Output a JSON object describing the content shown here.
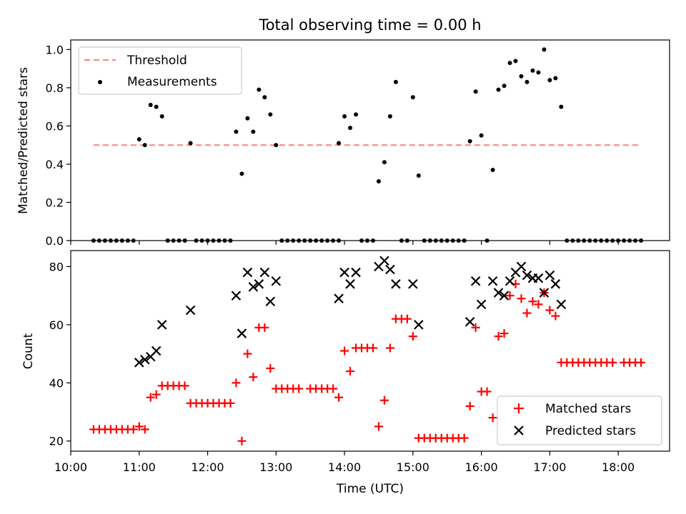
{
  "chart_data": [
    {
      "type": "scatter",
      "title": "Total observing time = 0.00 h",
      "xlabel": "",
      "ylabel": "Matched/Predicted stars",
      "xlim": [
        "10:00",
        "18:45"
      ],
      "ylim": [
        0,
        1.05
      ],
      "y_ticks": [
        "0.0",
        "0.2",
        "0.4",
        "0.6",
        "0.8",
        "1.0"
      ],
      "legend_position": "upper-left",
      "threshold": {
        "name": "Threshold",
        "value": 0.5,
        "x_range": [
          "10:20",
          "18:20"
        ],
        "color": "#ff7f7f",
        "style": "dashed"
      },
      "series": [
        {
          "name": "Measurements",
          "color": "#000000",
          "points": [
            [
              "10:20",
              0
            ],
            [
              "10:25",
              0
            ],
            [
              "10:30",
              0
            ],
            [
              "10:35",
              0
            ],
            [
              "10:40",
              0
            ],
            [
              "10:45",
              0
            ],
            [
              "10:50",
              0
            ],
            [
              "10:55",
              0
            ],
            [
              "11:00",
              0.53
            ],
            [
              "11:05",
              0.5
            ],
            [
              "11:10",
              0.71
            ],
            [
              "11:15",
              0.7
            ],
            [
              "11:20",
              0.65
            ],
            [
              "11:25",
              0
            ],
            [
              "11:30",
              0
            ],
            [
              "11:35",
              0
            ],
            [
              "11:40",
              0
            ],
            [
              "11:45",
              0.51
            ],
            [
              "11:50",
              0
            ],
            [
              "11:55",
              0
            ],
            [
              "12:00",
              0
            ],
            [
              "12:05",
              0
            ],
            [
              "12:10",
              0
            ],
            [
              "12:15",
              0
            ],
            [
              "12:20",
              0
            ],
            [
              "12:25",
              0.57
            ],
            [
              "12:30",
              0.35
            ],
            [
              "12:35",
              0.64
            ],
            [
              "12:40",
              0.57
            ],
            [
              "12:45",
              0.79
            ],
            [
              "12:50",
              0.75
            ],
            [
              "12:55",
              0.66
            ],
            [
              "13:00",
              0.5
            ],
            [
              "13:05",
              0
            ],
            [
              "13:10",
              0
            ],
            [
              "13:15",
              0
            ],
            [
              "13:20",
              0
            ],
            [
              "13:25",
              0
            ],
            [
              "13:30",
              0
            ],
            [
              "13:35",
              0
            ],
            [
              "13:40",
              0
            ],
            [
              "13:45",
              0
            ],
            [
              "13:50",
              0
            ],
            [
              "13:55",
              0
            ],
            [
              "13:55",
              0.51
            ],
            [
              "14:00",
              0.65
            ],
            [
              "14:05",
              0.59
            ],
            [
              "14:10",
              0.66
            ],
            [
              "14:15",
              0
            ],
            [
              "14:20",
              0
            ],
            [
              "14:25",
              0
            ],
            [
              "14:30",
              0.31
            ],
            [
              "14:35",
              0.41
            ],
            [
              "14:40",
              0.65
            ],
            [
              "14:45",
              0.83
            ],
            [
              "14:50",
              0
            ],
            [
              "14:55",
              0
            ],
            [
              "15:00",
              0.75
            ],
            [
              "15:05",
              0.34
            ],
            [
              "15:10",
              0
            ],
            [
              "15:15",
              0
            ],
            [
              "15:20",
              0
            ],
            [
              "15:25",
              0
            ],
            [
              "15:30",
              0
            ],
            [
              "15:35",
              0
            ],
            [
              "15:40",
              0
            ],
            [
              "15:45",
              0
            ],
            [
              "15:50",
              0.52
            ],
            [
              "15:55",
              0.78
            ],
            [
              "16:00",
              0.55
            ],
            [
              "16:05",
              0
            ],
            [
              "16:10",
              0.37
            ],
            [
              "16:15",
              0.79
            ],
            [
              "16:20",
              0.81
            ],
            [
              "16:25",
              0.93
            ],
            [
              "16:30",
              0.94
            ],
            [
              "16:35",
              0.86
            ],
            [
              "16:40",
              0.83
            ],
            [
              "16:45",
              0.89
            ],
            [
              "16:50",
              0.88
            ],
            [
              "16:55",
              1.0
            ],
            [
              "17:00",
              0.84
            ],
            [
              "17:05",
              0.85
            ],
            [
              "17:10",
              0.7
            ],
            [
              "17:15",
              0
            ],
            [
              "17:20",
              0
            ],
            [
              "17:25",
              0
            ],
            [
              "17:30",
              0
            ],
            [
              "17:35",
              0
            ],
            [
              "17:40",
              0
            ],
            [
              "17:45",
              0
            ],
            [
              "17:50",
              0
            ],
            [
              "17:55",
              0
            ],
            [
              "18:00",
              0
            ],
            [
              "18:05",
              0
            ],
            [
              "18:10",
              0
            ],
            [
              "18:15",
              0
            ],
            [
              "18:20",
              0
            ]
          ]
        }
      ]
    },
    {
      "type": "scatter",
      "title": "",
      "xlabel": "Time (UTC)",
      "ylabel": "Count",
      "xlim": [
        "10:00",
        "18:45"
      ],
      "ylim": [
        16.5,
        85.5
      ],
      "y_ticks": [
        "20",
        "40",
        "60",
        "80"
      ],
      "x_ticks": [
        "10:00",
        "11:00",
        "12:00",
        "13:00",
        "14:00",
        "15:00",
        "16:00",
        "17:00",
        "18:00"
      ],
      "legend_position": "lower-right",
      "series": [
        {
          "name": "Matched stars",
          "color": "#ff0000",
          "marker": "plus",
          "points": [
            [
              "10:20",
              24
            ],
            [
              "10:25",
              24
            ],
            [
              "10:30",
              24
            ],
            [
              "10:35",
              24
            ],
            [
              "10:40",
              24
            ],
            [
              "10:45",
              24
            ],
            [
              "10:50",
              24
            ],
            [
              "10:55",
              24
            ],
            [
              "11:00",
              25
            ],
            [
              "11:05",
              24
            ],
            [
              "11:10",
              35
            ],
            [
              "11:15",
              36
            ],
            [
              "11:20",
              39
            ],
            [
              "11:25",
              39
            ],
            [
              "11:30",
              39
            ],
            [
              "11:35",
              39
            ],
            [
              "11:40",
              39
            ],
            [
              "11:45",
              33
            ],
            [
              "11:50",
              33
            ],
            [
              "11:55",
              33
            ],
            [
              "12:00",
              33
            ],
            [
              "12:05",
              33
            ],
            [
              "12:10",
              33
            ],
            [
              "12:15",
              33
            ],
            [
              "12:20",
              33
            ],
            [
              "12:25",
              40
            ],
            [
              "12:30",
              20
            ],
            [
              "12:35",
              50
            ],
            [
              "12:40",
              42
            ],
            [
              "12:45",
              59
            ],
            [
              "12:50",
              59
            ],
            [
              "12:55",
              45
            ],
            [
              "13:00",
              38
            ],
            [
              "13:05",
              38
            ],
            [
              "13:10",
              38
            ],
            [
              "13:15",
              38
            ],
            [
              "13:20",
              38
            ],
            [
              "13:30",
              38
            ],
            [
              "13:35",
              38
            ],
            [
              "13:40",
              38
            ],
            [
              "13:45",
              38
            ],
            [
              "13:50",
              38
            ],
            [
              "13:55",
              35
            ],
            [
              "14:00",
              51
            ],
            [
              "14:05",
              44
            ],
            [
              "14:10",
              52
            ],
            [
              "14:15",
              52
            ],
            [
              "14:20",
              52
            ],
            [
              "14:25",
              52
            ],
            [
              "14:30",
              25
            ],
            [
              "14:35",
              34
            ],
            [
              "14:40",
              52
            ],
            [
              "14:45",
              62
            ],
            [
              "14:50",
              62
            ],
            [
              "14:55",
              62
            ],
            [
              "15:00",
              56
            ],
            [
              "15:05",
              21
            ],
            [
              "15:10",
              21
            ],
            [
              "15:15",
              21
            ],
            [
              "15:20",
              21
            ],
            [
              "15:25",
              21
            ],
            [
              "15:30",
              21
            ],
            [
              "15:35",
              21
            ],
            [
              "15:40",
              21
            ],
            [
              "15:45",
              21
            ],
            [
              "15:50",
              32
            ],
            [
              "15:55",
              59
            ],
            [
              "16:00",
              37
            ],
            [
              "16:05",
              37
            ],
            [
              "16:10",
              28
            ],
            [
              "16:15",
              56
            ],
            [
              "16:20",
              57
            ],
            [
              "16:25",
              70
            ],
            [
              "16:30",
              74
            ],
            [
              "16:35",
              69
            ],
            [
              "16:40",
              64
            ],
            [
              "16:45",
              68
            ],
            [
              "16:50",
              67
            ],
            [
              "16:55",
              71
            ],
            [
              "17:00",
              65
            ],
            [
              "17:05",
              63
            ],
            [
              "17:10",
              47
            ],
            [
              "17:15",
              47
            ],
            [
              "17:20",
              47
            ],
            [
              "17:25",
              47
            ],
            [
              "17:30",
              47
            ],
            [
              "17:35",
              47
            ],
            [
              "17:40",
              47
            ],
            [
              "17:45",
              47
            ],
            [
              "17:50",
              47
            ],
            [
              "17:55",
              47
            ],
            [
              "18:05",
              47
            ],
            [
              "18:10",
              47
            ],
            [
              "18:15",
              47
            ],
            [
              "18:20",
              47
            ]
          ]
        },
        {
          "name": "Predicted stars",
          "color": "#000000",
          "marker": "x",
          "points": [
            [
              "11:00",
              47
            ],
            [
              "11:05",
              48
            ],
            [
              "11:10",
              49
            ],
            [
              "11:15",
              51
            ],
            [
              "11:20",
              60
            ],
            [
              "11:45",
              65
            ],
            [
              "12:25",
              70
            ],
            [
              "12:30",
              57
            ],
            [
              "12:35",
              78
            ],
            [
              "12:40",
              73
            ],
            [
              "12:45",
              74
            ],
            [
              "12:50",
              78
            ],
            [
              "12:55",
              68
            ],
            [
              "13:00",
              75
            ],
            [
              "13:55",
              69
            ],
            [
              "14:00",
              78
            ],
            [
              "14:05",
              74
            ],
            [
              "14:10",
              78
            ],
            [
              "14:30",
              80
            ],
            [
              "14:35",
              82
            ],
            [
              "14:40",
              79
            ],
            [
              "14:45",
              74
            ],
            [
              "15:00",
              74
            ],
            [
              "15:05",
              60
            ],
            [
              "15:50",
              61
            ],
            [
              "15:55",
              75
            ],
            [
              "16:00",
              67
            ],
            [
              "16:10",
              75
            ],
            [
              "16:15",
              71
            ],
            [
              "16:20",
              70
            ],
            [
              "16:25",
              75
            ],
            [
              "16:30",
              78
            ],
            [
              "16:35",
              80
            ],
            [
              "16:40",
              77
            ],
            [
              "16:45",
              76
            ],
            [
              "16:50",
              76
            ],
            [
              "16:55",
              71
            ],
            [
              "17:00",
              77
            ],
            [
              "17:05",
              74
            ],
            [
              "17:10",
              67
            ]
          ]
        }
      ]
    }
  ]
}
